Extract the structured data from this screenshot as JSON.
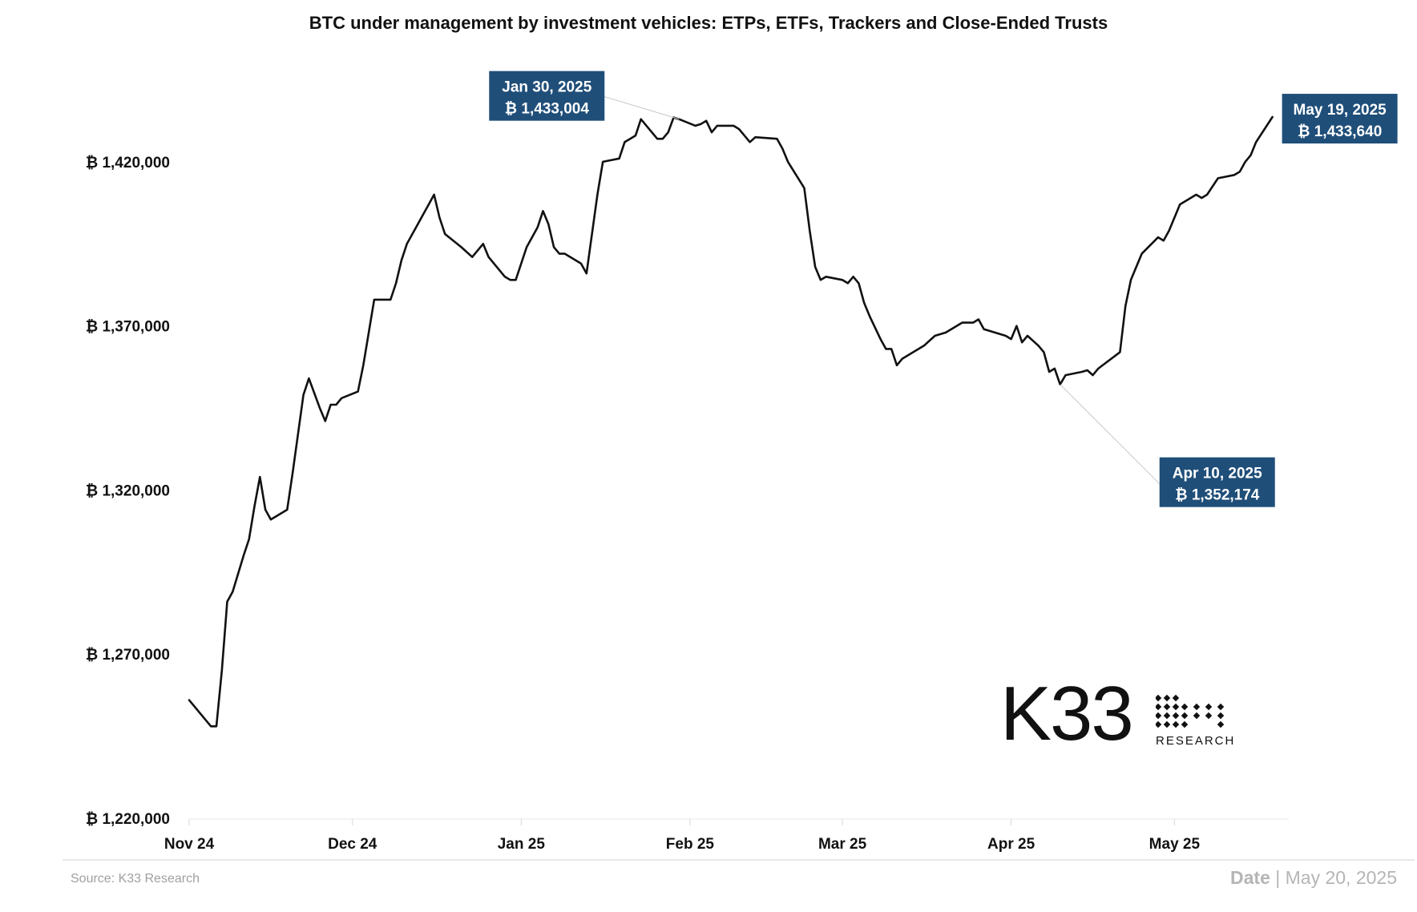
{
  "chart_data": {
    "type": "line",
    "title": "BTC under management by investment vehicles: ETPs, ETFs, Trackers and Close-Ended Trusts",
    "xlabel": "",
    "ylabel": "",
    "ylim": [
      1220000,
      1440000
    ],
    "xlim": [
      "2024-11-01",
      "2025-05-22"
    ],
    "y_ticks": [
      {
        "value": 1220000,
        "label": "₿ 1,220,000"
      },
      {
        "value": 1270000,
        "label": "₿ 1,270,000"
      },
      {
        "value": 1320000,
        "label": "₿ 1,320,000"
      },
      {
        "value": 1370000,
        "label": "₿ 1,370,000"
      },
      {
        "value": 1420000,
        "label": "₿ 1,420,000"
      }
    ],
    "x_ticks": [
      {
        "date": "2024-11-01",
        "label": "Nov 24"
      },
      {
        "date": "2024-12-01",
        "label": "Dec 24"
      },
      {
        "date": "2025-01-01",
        "label": "Jan 25"
      },
      {
        "date": "2025-02-01",
        "label": "Feb 25"
      },
      {
        "date": "2025-03-01",
        "label": "Mar 25"
      },
      {
        "date": "2025-04-01",
        "label": "Apr 25"
      },
      {
        "date": "2025-05-01",
        "label": "May 25"
      }
    ],
    "grid": false,
    "legend": "none",
    "line_color": "#111111",
    "series": [
      {
        "points": [
          [
            "2024-11-01",
            1256000
          ],
          [
            "2024-11-05",
            1248000
          ],
          [
            "2024-11-06",
            1248000
          ],
          [
            "2024-11-07",
            1265000
          ],
          [
            "2024-11-08",
            1286000
          ],
          [
            "2024-11-09",
            1289000
          ],
          [
            "2024-11-11",
            1300000
          ],
          [
            "2024-11-12",
            1305000
          ],
          [
            "2024-11-13",
            1315000
          ],
          [
            "2024-11-14",
            1324000
          ],
          [
            "2024-11-15",
            1314000
          ],
          [
            "2024-11-16",
            1311000
          ],
          [
            "2024-11-19",
            1314000
          ],
          [
            "2024-11-20",
            1325000
          ],
          [
            "2024-11-21",
            1337000
          ],
          [
            "2024-11-22",
            1349000
          ],
          [
            "2024-11-23",
            1354000
          ],
          [
            "2024-11-25",
            1345000
          ],
          [
            "2024-11-26",
            1341000
          ],
          [
            "2024-11-27",
            1346000
          ],
          [
            "2024-11-28",
            1346000
          ],
          [
            "2024-11-29",
            1348000
          ],
          [
            "2024-12-02",
            1350000
          ],
          [
            "2024-12-03",
            1358000
          ],
          [
            "2024-12-04",
            1368000
          ],
          [
            "2024-12-05",
            1378000
          ],
          [
            "2024-12-08",
            1378000
          ],
          [
            "2024-12-09",
            1383000
          ],
          [
            "2024-12-10",
            1390000
          ],
          [
            "2024-12-11",
            1395000
          ],
          [
            "2024-12-13",
            1401000
          ],
          [
            "2024-12-14",
            1404000
          ],
          [
            "2024-12-15",
            1407000
          ],
          [
            "2024-12-16",
            1410000
          ],
          [
            "2024-12-17",
            1403000
          ],
          [
            "2024-12-18",
            1398000
          ],
          [
            "2024-12-21",
            1394000
          ],
          [
            "2024-12-23",
            1391000
          ],
          [
            "2024-12-25",
            1395000
          ],
          [
            "2024-12-26",
            1391000
          ],
          [
            "2024-12-29",
            1385000
          ],
          [
            "2024-12-30",
            1384000
          ],
          [
            "2024-12-31",
            1384000
          ],
          [
            "2025-01-02",
            1394000
          ],
          [
            "2025-01-04",
            1400000
          ],
          [
            "2025-01-05",
            1405000
          ],
          [
            "2025-01-06",
            1401000
          ],
          [
            "2025-01-07",
            1394000
          ],
          [
            "2025-01-08",
            1392000
          ],
          [
            "2025-01-09",
            1392000
          ],
          [
            "2025-01-12",
            1389000
          ],
          [
            "2025-01-13",
            1386000
          ],
          [
            "2025-01-15",
            1410000
          ],
          [
            "2025-01-16",
            1420000
          ],
          [
            "2025-01-19",
            1421000
          ],
          [
            "2025-01-20",
            1426000
          ],
          [
            "2025-01-21",
            1427000
          ],
          [
            "2025-01-22",
            1428000
          ],
          [
            "2025-01-23",
            1433000
          ],
          [
            "2025-01-26",
            1427000
          ],
          [
            "2025-01-27",
            1427000
          ],
          [
            "2025-01-28",
            1429000
          ],
          [
            "2025-01-29",
            1433500
          ],
          [
            "2025-01-30",
            1433004
          ],
          [
            "2025-02-02",
            1431000
          ],
          [
            "2025-02-03",
            1431500
          ],
          [
            "2025-02-04",
            1432500
          ],
          [
            "2025-02-05",
            1429000
          ],
          [
            "2025-02-06",
            1431000
          ],
          [
            "2025-02-09",
            1431000
          ],
          [
            "2025-02-10",
            1430000
          ],
          [
            "2025-02-11",
            1428000
          ],
          [
            "2025-02-12",
            1426000
          ],
          [
            "2025-02-13",
            1427500
          ],
          [
            "2025-02-17",
            1427000
          ],
          [
            "2025-02-18",
            1424000
          ],
          [
            "2025-02-19",
            1420000
          ],
          [
            "2025-02-22",
            1412000
          ],
          [
            "2025-02-23",
            1399000
          ],
          [
            "2025-02-24",
            1388000
          ],
          [
            "2025-02-25",
            1384000
          ],
          [
            "2025-02-26",
            1385000
          ],
          [
            "2025-03-01",
            1384000
          ],
          [
            "2025-03-02",
            1383000
          ],
          [
            "2025-03-03",
            1385000
          ],
          [
            "2025-03-04",
            1383000
          ],
          [
            "2025-03-05",
            1377000
          ],
          [
            "2025-03-06",
            1373000
          ],
          [
            "2025-03-08",
            1366000
          ],
          [
            "2025-03-09",
            1363000
          ],
          [
            "2025-03-10",
            1363000
          ],
          [
            "2025-03-11",
            1358000
          ],
          [
            "2025-03-12",
            1360000
          ],
          [
            "2025-03-15",
            1363000
          ],
          [
            "2025-03-16",
            1364000
          ],
          [
            "2025-03-18",
            1367000
          ],
          [
            "2025-03-20",
            1368000
          ],
          [
            "2025-03-23",
            1371000
          ],
          [
            "2025-03-25",
            1371000
          ],
          [
            "2025-03-26",
            1372000
          ],
          [
            "2025-03-27",
            1369000
          ],
          [
            "2025-03-31",
            1367000
          ],
          [
            "2025-04-01",
            1366000
          ],
          [
            "2025-04-02",
            1370000
          ],
          [
            "2025-04-03",
            1365000
          ],
          [
            "2025-04-04",
            1367000
          ],
          [
            "2025-04-06",
            1364000
          ],
          [
            "2025-04-07",
            1362000
          ],
          [
            "2025-04-08",
            1356000
          ],
          [
            "2025-04-09",
            1357000
          ],
          [
            "2025-04-10",
            1352174
          ],
          [
            "2025-04-11",
            1355000
          ],
          [
            "2025-04-14",
            1356000
          ],
          [
            "2025-04-15",
            1356500
          ],
          [
            "2025-04-16",
            1355000
          ],
          [
            "2025-04-17",
            1357000
          ],
          [
            "2025-04-21",
            1362000
          ],
          [
            "2025-04-22",
            1376000
          ],
          [
            "2025-04-23",
            1384000
          ],
          [
            "2025-04-25",
            1392000
          ],
          [
            "2025-04-28",
            1397000
          ],
          [
            "2025-04-29",
            1396000
          ],
          [
            "2025-04-30",
            1399000
          ],
          [
            "2025-05-02",
            1407000
          ],
          [
            "2025-05-05",
            1410000
          ],
          [
            "2025-05-06",
            1409000
          ],
          [
            "2025-05-07",
            1410000
          ],
          [
            "2025-05-09",
            1415000
          ],
          [
            "2025-05-12",
            1416000
          ],
          [
            "2025-05-13",
            1417000
          ],
          [
            "2025-05-14",
            1420000
          ],
          [
            "2025-05-15",
            1422000
          ],
          [
            "2025-05-16",
            1426000
          ],
          [
            "2025-05-19",
            1433640
          ]
        ]
      }
    ],
    "annotations": [
      {
        "date": "2025-01-30",
        "value": 1433004,
        "line1": "Jan 30, 2025",
        "line2": "₿ 1,433,004",
        "position": "top-left"
      },
      {
        "date": "2025-05-19",
        "value": 1433640,
        "line1": "May 19, 2025",
        "line2": "₿ 1,433,640",
        "position": "right"
      },
      {
        "date": "2025-04-10",
        "value": 1352174,
        "line1": "Apr 10, 2025",
        "line2": "₿ 1,352,174",
        "position": "bottom-right"
      }
    ],
    "annotation_color": "#1f4e79"
  },
  "footer": {
    "source": "Source:  K33 Research",
    "date_label": "Date",
    "date_value": " | May 20, 2025"
  },
  "logo": {
    "name": "K33",
    "sub": "RESEARCH"
  }
}
